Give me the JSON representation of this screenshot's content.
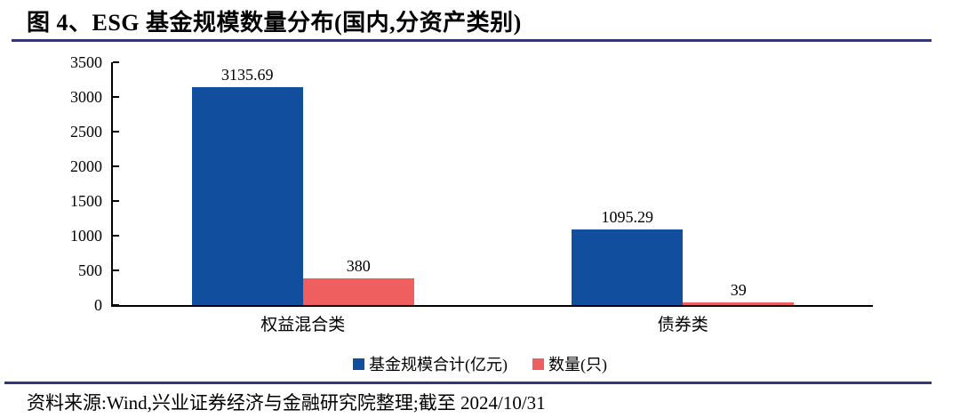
{
  "figure": {
    "title": "图 4、ESG 基金规模数量分布(国内,分资产类别)",
    "source": "资料来源:Wind,兴业证券经济与金融研究院整理;截至 2024/10/31"
  },
  "colors": {
    "bar_blue": "#114F9E",
    "bar_red": "#F05F5F",
    "rule_navy": "#333679",
    "axis": "#000000"
  },
  "chart_data": {
    "type": "bar",
    "title": "ESG 基金规模数量分布(国内,分资产类别)",
    "categories": [
      "权益混合类",
      "债券类"
    ],
    "series": [
      {
        "name": "基金规模合计(亿元)",
        "color": "#114F9E",
        "values": [
          3135.69,
          1095.29
        ]
      },
      {
        "name": "数量(只)",
        "color": "#F05F5F",
        "values": [
          380,
          39
        ]
      }
    ],
    "xlabel": "",
    "ylabel": "",
    "ylim": [
      0,
      3500
    ],
    "yticks": [
      0,
      500,
      1000,
      1500,
      2000,
      2500,
      3000,
      3500
    ],
    "grid": false,
    "legend_position": "bottom",
    "value_labels_shown": true
  }
}
